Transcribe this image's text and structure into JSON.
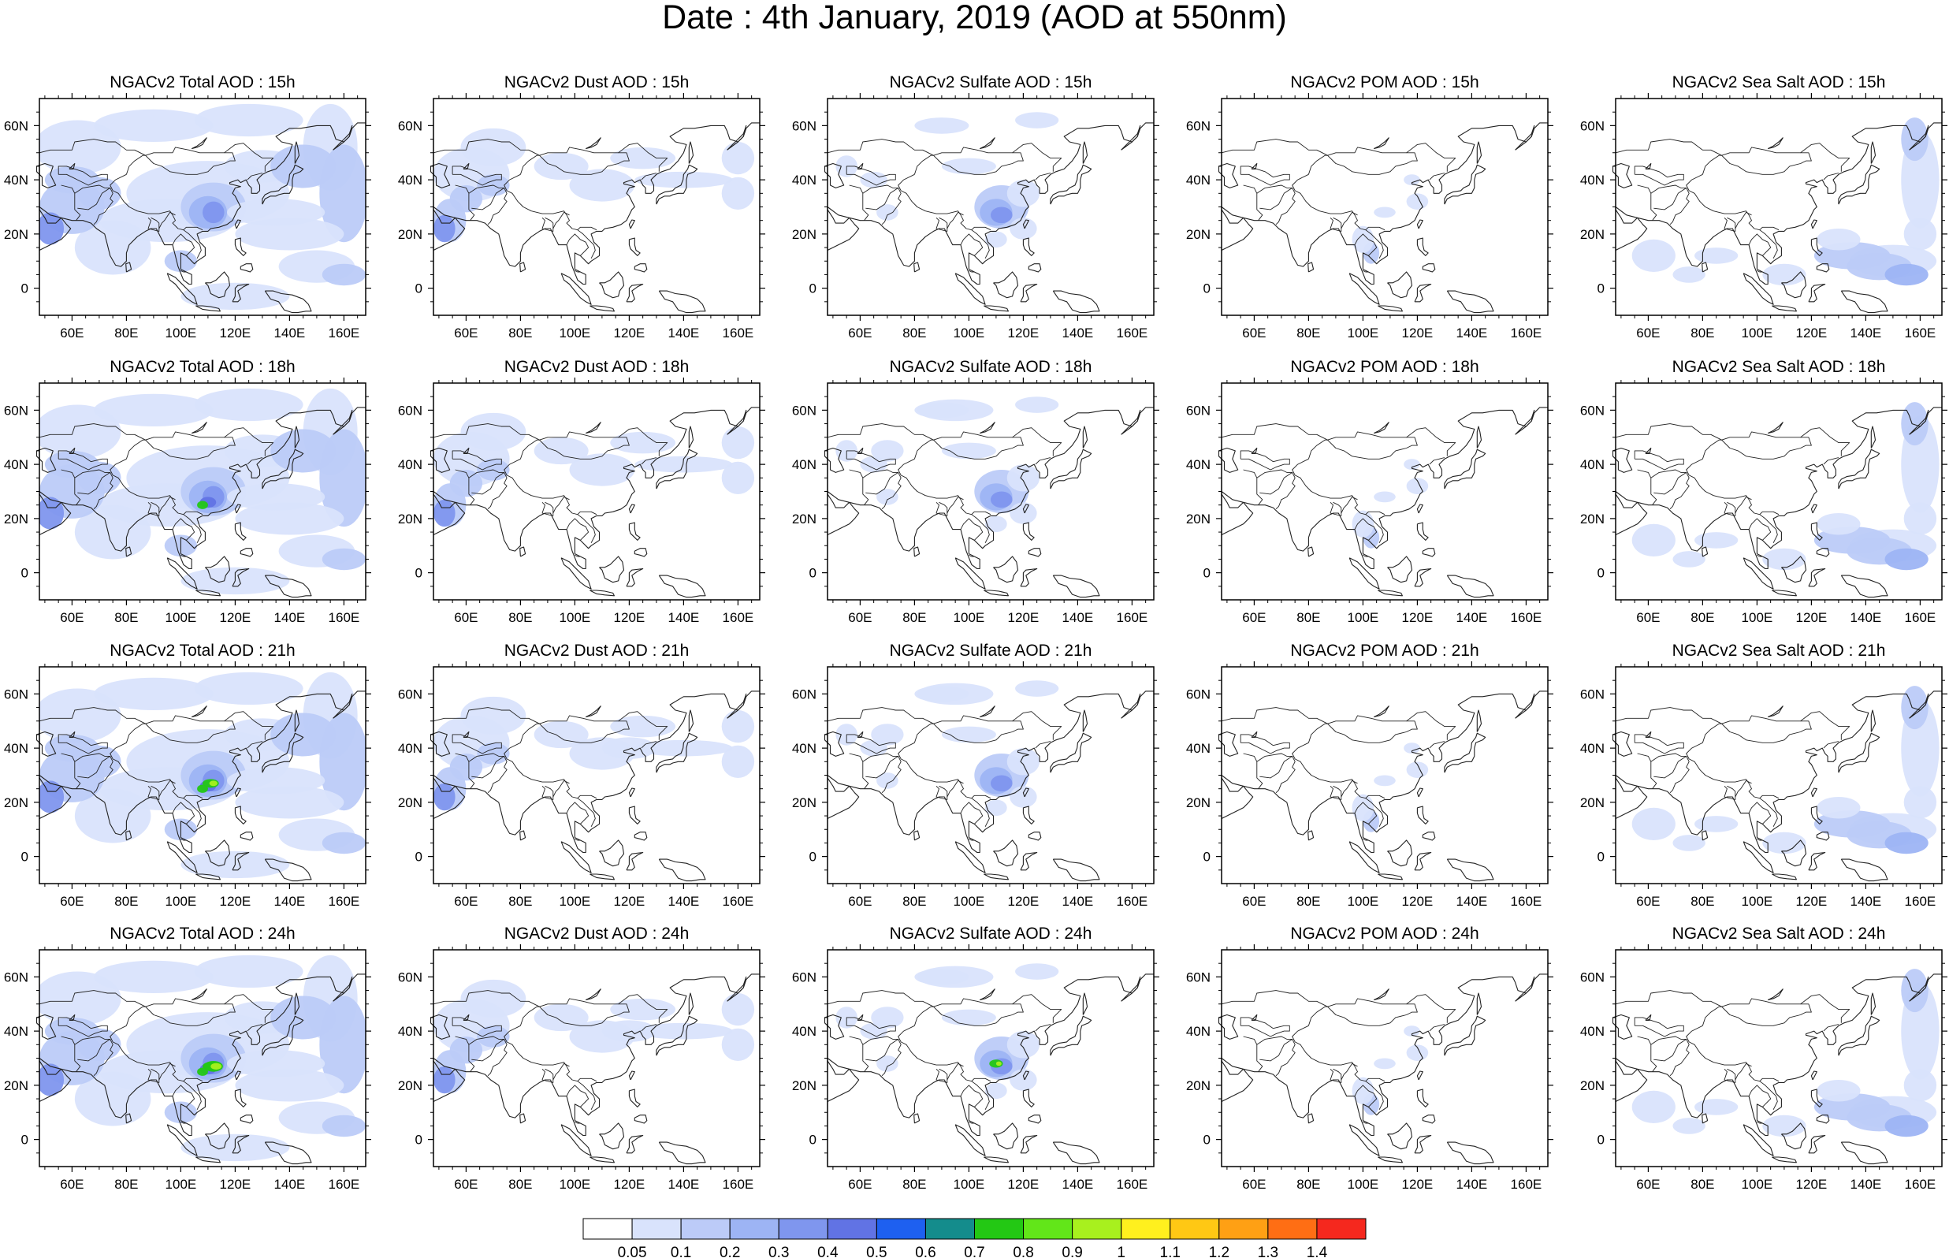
{
  "title": "Date : 4th January, 2019 (AOD at 550nm)",
  "grid": {
    "columns": [
      "NGACv2 Total AOD",
      "NGACv2 Dust AOD",
      "NGACv2 Sulfate AOD",
      "NGACv2 POM AOD",
      "NGACv2 Sea Salt AOD"
    ],
    "rows": [
      "15h",
      "18h",
      "21h",
      "24h"
    ],
    "panel_titles": [
      [
        "NGACv2 Total AOD : 15h",
        "NGACv2 Dust AOD : 15h",
        "NGACv2 Sulfate AOD : 15h",
        "NGACv2 POM AOD : 15h",
        "NGACv2 Sea Salt AOD : 15h"
      ],
      [
        "NGACv2 Total AOD : 18h",
        "NGACv2 Dust AOD : 18h",
        "NGACv2 Sulfate AOD : 18h",
        "NGACv2 POM AOD : 18h",
        "NGACv2 Sea Salt AOD : 18h"
      ],
      [
        "NGACv2 Total AOD : 21h",
        "NGACv2 Dust AOD : 21h",
        "NGACv2 Sulfate AOD : 21h",
        "NGACv2 POM AOD : 21h",
        "NGACv2 Sea Salt AOD : 21h"
      ],
      [
        "NGACv2 Total AOD : 24h",
        "NGACv2 Dust AOD : 24h",
        "NGACv2 Sulfate AOD : 24h",
        "NGACv2 POM AOD : 24h",
        "NGACv2 Sea Salt  AOD : 24h"
      ]
    ]
  },
  "map": {
    "lon_range": [
      48,
      168
    ],
    "lat_range": [
      -10,
      70
    ],
    "lon_ticks": [
      "60E",
      "80E",
      "100E",
      "120E",
      "140E",
      "160E"
    ],
    "lon_tick_values": [
      60,
      80,
      100,
      120,
      140,
      160
    ],
    "lat_ticks": [
      "0",
      "20N",
      "40N",
      "60N"
    ],
    "lat_tick_values": [
      0,
      20,
      40,
      60
    ]
  },
  "colorbar": {
    "labels": [
      "0.05",
      "0.1",
      "0.2",
      "0.3",
      "0.4",
      "0.5",
      "0.6",
      "0.7",
      "0.8",
      "0.9",
      "1",
      "1.1",
      "1.2",
      "1.3",
      "1.4"
    ],
    "colors": [
      "#ffffff",
      "#d9e3fc",
      "#bccbf8",
      "#9db4f4",
      "#7f96ee",
      "#6173e4",
      "#1e60f0",
      "#148c8c",
      "#23c814",
      "#62e619",
      "#a8f01e",
      "#fff01e",
      "#ffc814",
      "#ffa014",
      "#ff6e14",
      "#f5281e"
    ]
  },
  "colors": {
    "low": "#d9e3fc",
    "mid": "#bccbf8",
    "high": "#9db4f4",
    "higher": "#7f96ee",
    "peak": "#6173e4",
    "green": "#23c814",
    "lime": "#a8f01e",
    "coast": "#222222"
  }
}
